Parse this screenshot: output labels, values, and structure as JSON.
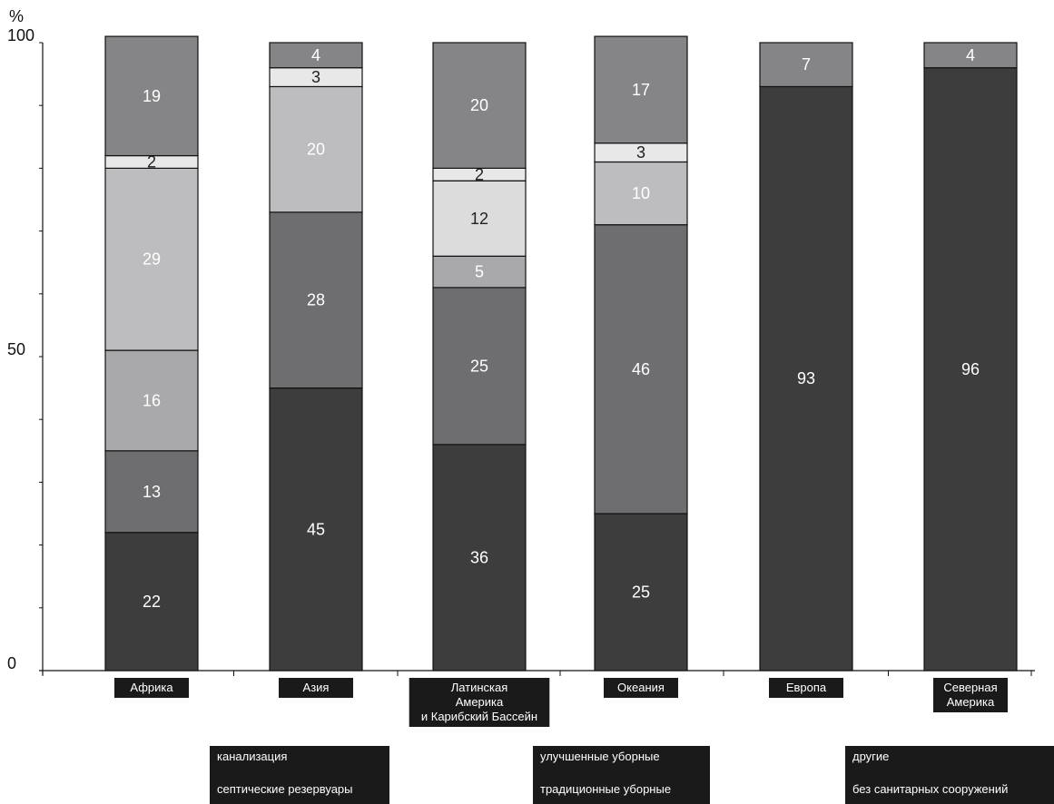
{
  "chart_data": {
    "type": "bar",
    "stacked": true,
    "y_unit_label": "%",
    "ylim": [
      0,
      100
    ],
    "y_ticks": [
      "0",
      "50",
      "100"
    ],
    "grid": false,
    "categories": [
      [
        "Африка"
      ],
      [
        "Азия"
      ],
      [
        "Латинская",
        "Америка",
        "и Карибский Бассейн"
      ],
      [
        "Океания"
      ],
      [
        "Европа"
      ],
      [
        "Северная",
        "Америка"
      ]
    ],
    "series": [
      {
        "name": "канализация",
        "color": "#3d3d3d",
        "label_color": "#ffffff",
        "values": [
          22,
          45,
          36,
          25,
          93,
          96
        ]
      },
      {
        "name": "септические резервуары",
        "color": "#6e6e70",
        "label_color": "#ffffff",
        "values": [
          13,
          28,
          25,
          46,
          0,
          0
        ]
      },
      {
        "name": "улучшенные уборные",
        "color": "#a9a9ab",
        "label_color": "#ffffff",
        "values": [
          16,
          0,
          5,
          0,
          0,
          0
        ]
      },
      {
        "name": "традиционные уборные",
        "color": "#bdbdbf",
        "label_color": "#ffffff",
        "values": [
          29,
          20,
          0,
          10,
          0,
          0
        ]
      },
      {
        "name": "другие",
        "color": "#dcdcdc",
        "label_color": "#222222",
        "values": [
          0,
          0,
          12,
          0,
          0,
          0
        ]
      },
      {
        "name": "другие (2)",
        "color": "#e8e8e8",
        "label_color": "#222222",
        "values": [
          2,
          3,
          2,
          3,
          0,
          0
        ]
      },
      {
        "name": "без санитарных сооружений",
        "color": "#858587",
        "label_color": "#ffffff",
        "values": [
          19,
          4,
          20,
          17,
          7,
          4
        ]
      }
    ],
    "legend": {
      "placement": "bottom",
      "groups": [
        [
          "канализация",
          "септические резервуары"
        ],
        [
          "улучшенные уборные",
          "традиционные уборные"
        ],
        [
          "другие",
          "без санитарных сооружений"
        ]
      ]
    }
  }
}
